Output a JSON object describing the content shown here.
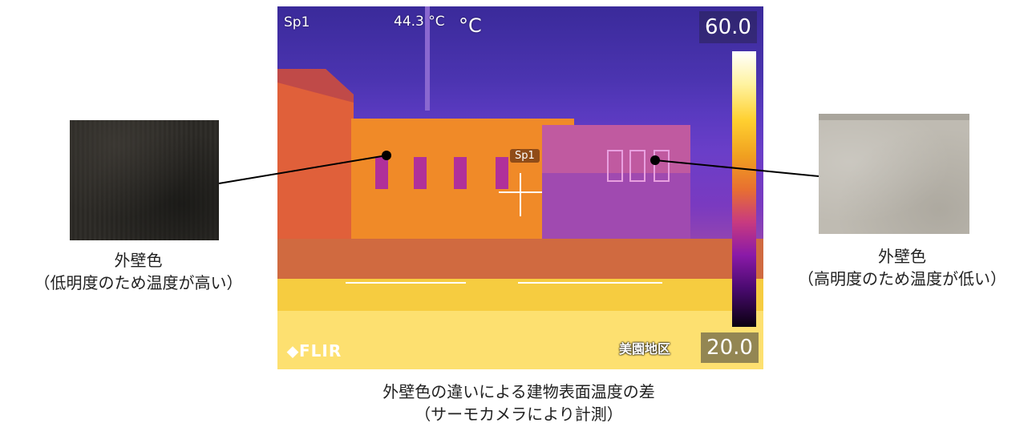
{
  "left_sample": {
    "label": "外壁色",
    "note": "（低明度のため温度が高い）"
  },
  "right_sample": {
    "label": "外壁色",
    "note": "（高明度のため温度が低い）"
  },
  "thermal": {
    "spot_label": "Sp1",
    "spot_temp": "44.3 °C",
    "unit": "°C",
    "scale_max": "60.0",
    "scale_min": "20.0",
    "brand": "FLIR",
    "region": "美園地区",
    "spot_marker": "Sp1",
    "colors": {
      "building_hot": "#f08a28",
      "building_cool": "#a04ab0",
      "sky": "#4b34b0",
      "ground": "#f6cc40"
    }
  },
  "caption": {
    "line1": "外壁色の違いによる建物表面温度の差",
    "line2": "（サーモカメラにより計測）"
  }
}
